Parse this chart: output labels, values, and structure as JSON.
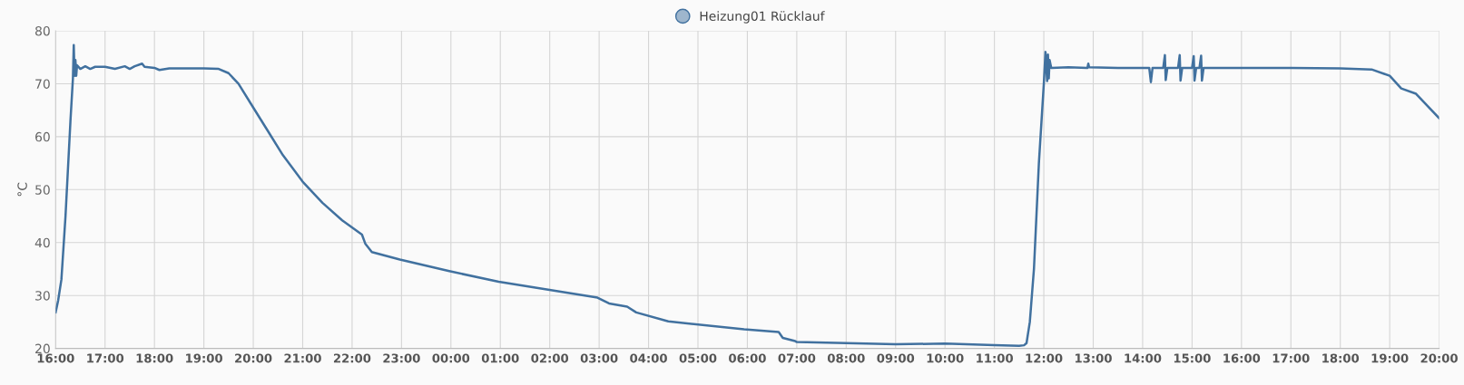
{
  "chart_data": {
    "type": "line",
    "ylabel": "°C",
    "legend": "top",
    "grid": true,
    "marker": "none",
    "line_style": "solid",
    "xlim": [
      "2000-01-01T16:00",
      "2000-01-02T20:00"
    ],
    "ylim": [
      20,
      80
    ],
    "yticks": [
      20,
      30,
      40,
      50,
      60,
      70,
      80
    ],
    "xticks": [
      {
        "value": "2000-01-01T16:00",
        "label": "16:00"
      },
      {
        "value": "2000-01-01T17:00",
        "label": "17:00"
      },
      {
        "value": "2000-01-01T18:00",
        "label": "18:00"
      },
      {
        "value": "2000-01-01T19:00",
        "label": "19:00"
      },
      {
        "value": "2000-01-01T20:00",
        "label": "20:00"
      },
      {
        "value": "2000-01-01T21:00",
        "label": "21:00"
      },
      {
        "value": "2000-01-01T22:00",
        "label": "22:00"
      },
      {
        "value": "2000-01-01T23:00",
        "label": "23:00"
      },
      {
        "value": "2000-01-02T00:00",
        "label": "00:00"
      },
      {
        "value": "2000-01-02T01:00",
        "label": "01:00"
      },
      {
        "value": "2000-01-02T02:00",
        "label": "02:00"
      },
      {
        "value": "2000-01-02T03:00",
        "label": "03:00"
      },
      {
        "value": "2000-01-02T04:00",
        "label": "04:00"
      },
      {
        "value": "2000-01-02T05:00",
        "label": "05:00"
      },
      {
        "value": "2000-01-02T06:00",
        "label": "06:00"
      },
      {
        "value": "2000-01-02T07:00",
        "label": "07:00"
      },
      {
        "value": "2000-01-02T08:00",
        "label": "08:00"
      },
      {
        "value": "2000-01-02T09:00",
        "label": "09:00"
      },
      {
        "value": "2000-01-02T10:00",
        "label": "10:00"
      },
      {
        "value": "2000-01-02T11:00",
        "label": "11:00"
      },
      {
        "value": "2000-01-02T12:00",
        "label": "12:00"
      },
      {
        "value": "2000-01-02T13:00",
        "label": "13:00"
      },
      {
        "value": "2000-01-02T14:00",
        "label": "14:00"
      },
      {
        "value": "2000-01-02T15:00",
        "label": "15:00"
      },
      {
        "value": "2000-01-02T16:00",
        "label": "16:00"
      },
      {
        "value": "2000-01-02T17:00",
        "label": "17:00"
      },
      {
        "value": "2000-01-02T18:00",
        "label": "18:00"
      },
      {
        "value": "2000-01-02T19:00",
        "label": "19:00"
      },
      {
        "value": "2000-01-02T20:00",
        "label": "20:00"
      }
    ],
    "series": [
      {
        "name": "Heizung01 Rücklauf",
        "color": "#41719f",
        "x": [
          "2000-01-01T16:00",
          "2000-01-01T16:03",
          "2000-01-01T16:07",
          "2000-01-01T16:12",
          "2000-01-01T16:18",
          "2000-01-01T16:21",
          "2000-01-01T16:22",
          "2000-01-01T16:23",
          "2000-01-01T16:24",
          "2000-01-01T16:25",
          "2000-01-01T16:26",
          "2000-01-01T16:30",
          "2000-01-01T16:36",
          "2000-01-01T16:42",
          "2000-01-01T16:48",
          "2000-01-01T17:00",
          "2000-01-01T17:12",
          "2000-01-01T17:24",
          "2000-01-01T17:30",
          "2000-01-01T17:36",
          "2000-01-01T17:45",
          "2000-01-01T17:48",
          "2000-01-01T18:00",
          "2000-01-01T18:06",
          "2000-01-01T18:18",
          "2000-01-01T19:00",
          "2000-01-01T19:18",
          "2000-01-01T19:30",
          "2000-01-01T19:42",
          "2000-01-01T20:00",
          "2000-01-01T20:18",
          "2000-01-01T20:36",
          "2000-01-01T21:00",
          "2000-01-01T21:24",
          "2000-01-01T21:48",
          "2000-01-01T22:12",
          "2000-01-01T22:16",
          "2000-01-01T22:24",
          "2000-01-01T22:58",
          "2000-01-01T23:58",
          "2000-01-02T00:58",
          "2000-01-02T01:58",
          "2000-01-02T02:58",
          "2000-01-02T03:12",
          "2000-01-02T03:34",
          "2000-01-02T03:45",
          "2000-01-02T04:24",
          "2000-01-02T05:56",
          "2000-01-02T06:38",
          "2000-01-02T06:43",
          "2000-01-02T06:58",
          "2000-01-02T07:00",
          "2000-01-02T08:00",
          "2000-01-02T09:00",
          "2000-01-02T10:00",
          "2000-01-02T11:00",
          "2000-01-02T11:30",
          "2000-01-02T11:36",
          "2000-01-02T11:39",
          "2000-01-02T11:43",
          "2000-01-02T11:48",
          "2000-01-02T11:54",
          "2000-01-02T12:00",
          "2000-01-02T12:02",
          "2000-01-02T12:04",
          "2000-01-02T12:05",
          "2000-01-02T12:06",
          "2000-01-02T12:07",
          "2000-01-02T12:09",
          "2000-01-02T12:30",
          "2000-01-02T12:53",
          "2000-01-02T12:54",
          "2000-01-02T12:55",
          "2000-01-02T13:30",
          "2000-01-02T14:08",
          "2000-01-02T14:10",
          "2000-01-02T14:12",
          "2000-01-02T14:25",
          "2000-01-02T14:27",
          "2000-01-02T14:28",
          "2000-01-02T14:30",
          "2000-01-02T14:43",
          "2000-01-02T14:45",
          "2000-01-02T14:46",
          "2000-01-02T14:48",
          "2000-01-02T15:00",
          "2000-01-02T15:02",
          "2000-01-02T15:03",
          "2000-01-02T15:05",
          "2000-01-02T15:09",
          "2000-01-02T15:11",
          "2000-01-02T15:12",
          "2000-01-02T15:14",
          "2000-01-02T16:00",
          "2000-01-02T17:00",
          "2000-01-02T18:00",
          "2000-01-02T18:38",
          "2000-01-02T19:00",
          "2000-01-02T19:14",
          "2000-01-02T19:32",
          "2000-01-02T20:00"
        ],
        "values": [
          26.8,
          29,
          33,
          45,
          63,
          71,
          77.3,
          71.5,
          74.5,
          71.5,
          73.5,
          72.8,
          73.3,
          72.8,
          73.2,
          73.2,
          72.8,
          73.3,
          72.8,
          73.3,
          73.8,
          73.2,
          73.0,
          72.6,
          72.9,
          72.9,
          72.8,
          72.0,
          70.0,
          65.5,
          61,
          56.5,
          51.5,
          47.5,
          44.2,
          41.5,
          39.8,
          38.2,
          36.8,
          34.6,
          32.6,
          31.1,
          29.6,
          28.5,
          27.9,
          26.8,
          25.1,
          23.6,
          23.1,
          22.0,
          21.4,
          21.2,
          21.0,
          20.8,
          20.9,
          20.6,
          20.5,
          20.6,
          21,
          25,
          35,
          55,
          70,
          76,
          70.5,
          75.5,
          71,
          74.5,
          73,
          73.1,
          73.0,
          73.8,
          73.1,
          73.0,
          73.0,
          70.3,
          73.0,
          73.0,
          75.4,
          70.7,
          73.0,
          73.0,
          75.4,
          70.6,
          73.0,
          73.0,
          75.2,
          70.6,
          73.0,
          73.0,
          75.3,
          70.6,
          73.0,
          73.0,
          73.0,
          72.9,
          72.7,
          71.5,
          69.1,
          68.1,
          63.5
        ]
      }
    ]
  }
}
